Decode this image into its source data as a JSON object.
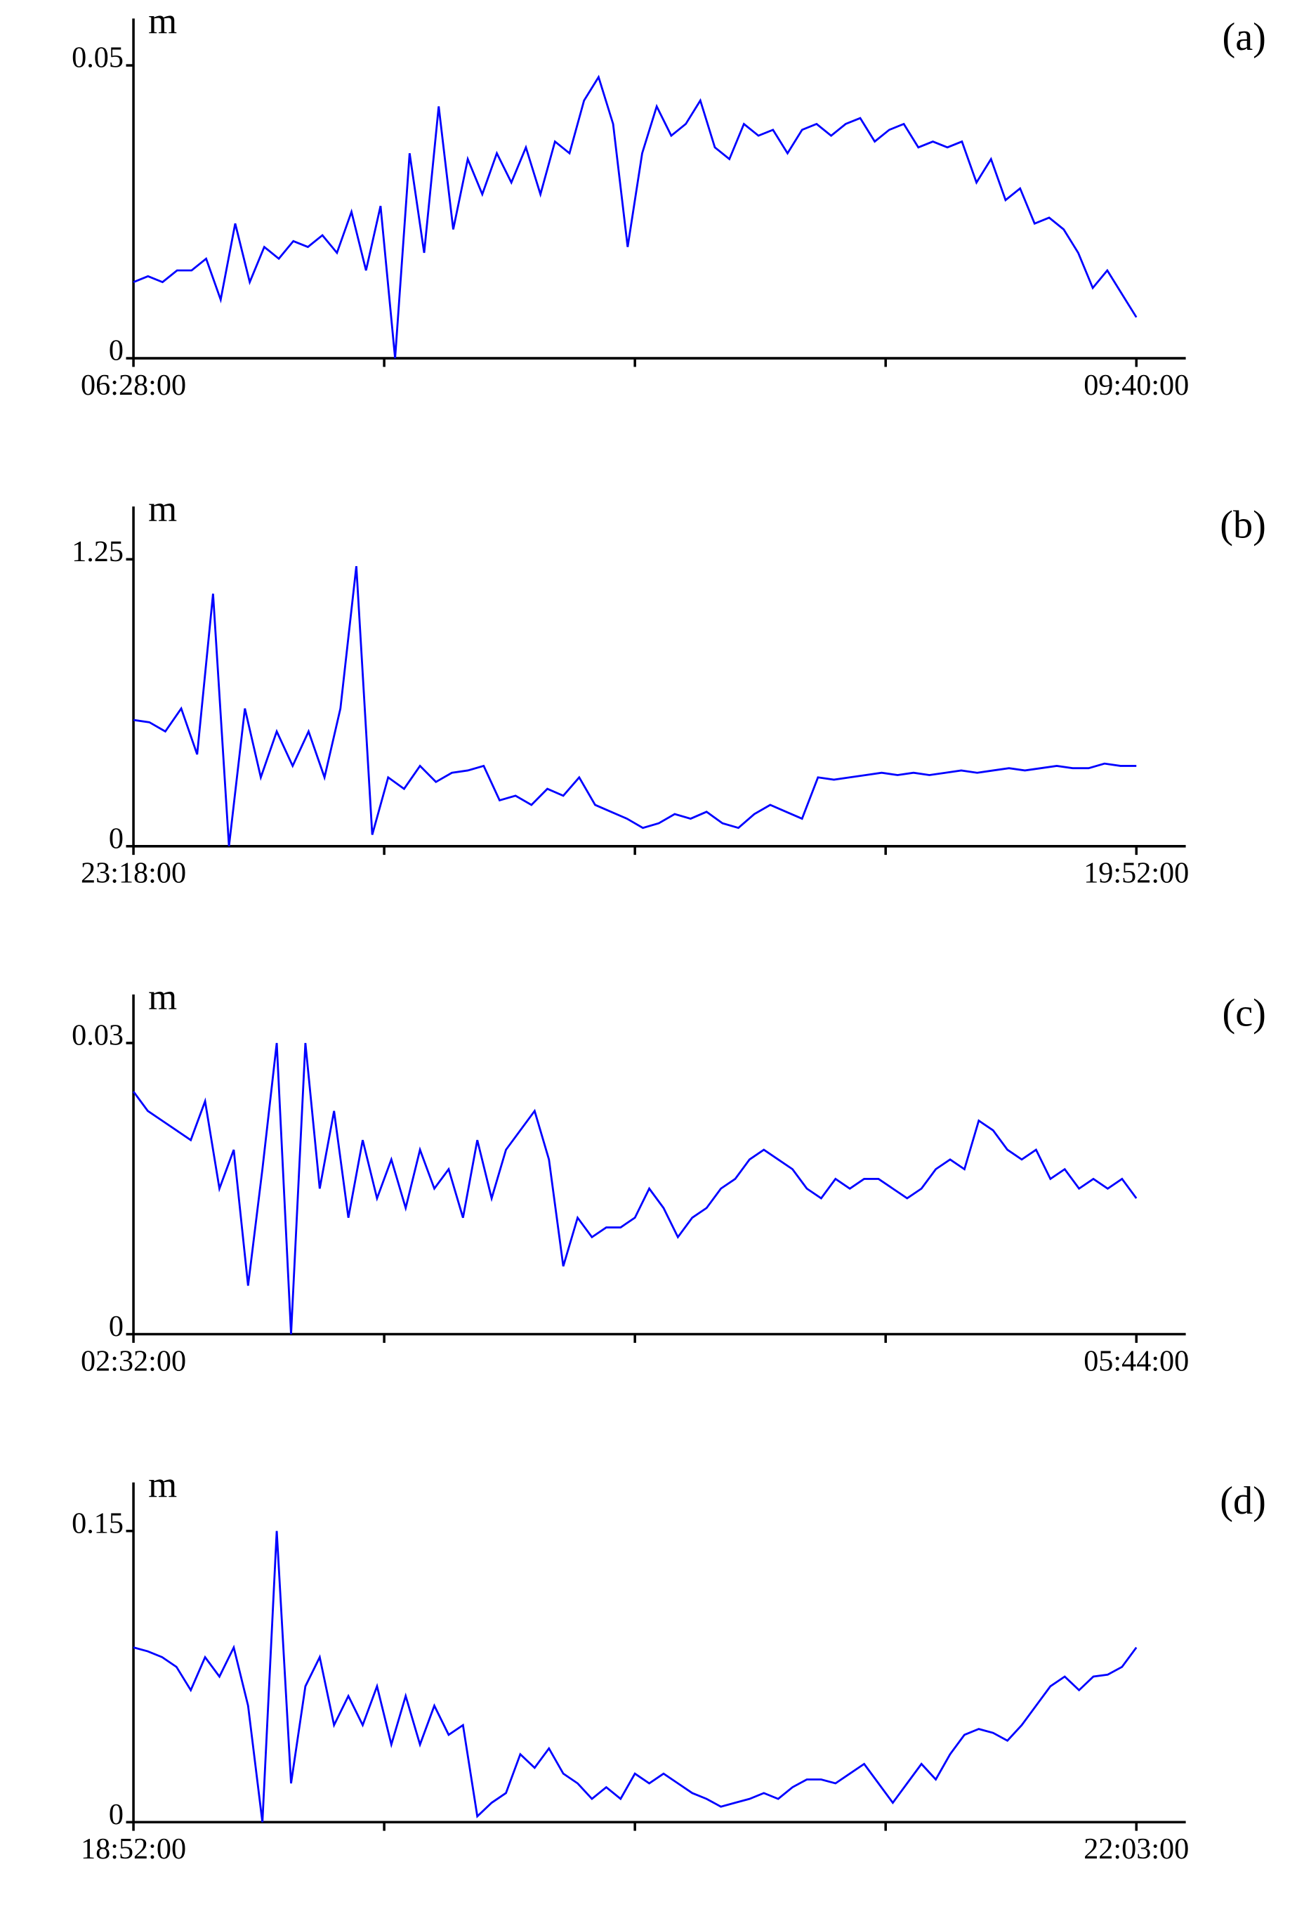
{
  "chart_data": [
    {
      "type": "line",
      "panel_label": "(a)",
      "unit": "m",
      "color": "#0000ff",
      "xticks": [
        "06:28:00",
        null,
        null,
        null,
        "09:40:00"
      ],
      "ylim": [
        0,
        0.058
      ],
      "yticks": [
        0,
        0.05
      ],
      "values": [
        0.013,
        0.014,
        0.013,
        0.015,
        0.015,
        0.017,
        0.01,
        0.023,
        0.013,
        0.019,
        0.017,
        0.02,
        0.019,
        0.021,
        0.018,
        0.025,
        0.015,
        0.026,
        0.0,
        0.035,
        0.018,
        0.043,
        0.022,
        0.034,
        0.028,
        0.035,
        0.03,
        0.036,
        0.028,
        0.037,
        0.035,
        0.044,
        0.048,
        0.04,
        0.019,
        0.035,
        0.043,
        0.038,
        0.04,
        0.044,
        0.036,
        0.034,
        0.04,
        0.038,
        0.039,
        0.035,
        0.039,
        0.04,
        0.038,
        0.04,
        0.041,
        0.037,
        0.039,
        0.04,
        0.036,
        0.037,
        0.036,
        0.037,
        0.03,
        0.034,
        0.027,
        0.029,
        0.023,
        0.024,
        0.022,
        0.018,
        0.012,
        0.015,
        0.011,
        0.007
      ]
    },
    {
      "type": "line",
      "panel_label": "(b)",
      "unit": "m",
      "color": "#0000ff",
      "xticks": [
        "23:18:00",
        null,
        null,
        null,
        "19:52:00"
      ],
      "ylim": [
        0,
        1.48
      ],
      "yticks": [
        0,
        1.25
      ],
      "values": [
        0.55,
        0.54,
        0.5,
        0.6,
        0.4,
        1.1,
        0.0,
        0.6,
        0.3,
        0.5,
        0.35,
        0.5,
        0.3,
        0.6,
        1.22,
        0.05,
        0.3,
        0.25,
        0.35,
        0.28,
        0.32,
        0.33,
        0.35,
        0.2,
        0.22,
        0.18,
        0.25,
        0.22,
        0.3,
        0.18,
        0.15,
        0.12,
        0.08,
        0.1,
        0.14,
        0.12,
        0.15,
        0.1,
        0.08,
        0.14,
        0.18,
        0.15,
        0.12,
        0.3,
        0.29,
        0.3,
        0.31,
        0.32,
        0.31,
        0.32,
        0.31,
        0.32,
        0.33,
        0.32,
        0.33,
        0.34,
        0.33,
        0.34,
        0.35,
        0.34,
        0.34,
        0.36,
        0.35,
        0.35
      ]
    },
    {
      "type": "line",
      "panel_label": "(c)",
      "unit": "m",
      "color": "#0000ff",
      "xticks": [
        "02:32:00",
        null,
        null,
        null,
        "05:44:00"
      ],
      "ylim": [
        0,
        0.035
      ],
      "yticks": [
        0,
        0.03
      ],
      "values": [
        0.025,
        0.023,
        0.022,
        0.021,
        0.02,
        0.024,
        0.015,
        0.019,
        0.005,
        0.017,
        0.03,
        0.0,
        0.03,
        0.015,
        0.023,
        0.012,
        0.02,
        0.014,
        0.018,
        0.013,
        0.019,
        0.015,
        0.017,
        0.012,
        0.02,
        0.014,
        0.019,
        0.021,
        0.023,
        0.018,
        0.007,
        0.012,
        0.01,
        0.011,
        0.011,
        0.012,
        0.015,
        0.013,
        0.01,
        0.012,
        0.013,
        0.015,
        0.016,
        0.018,
        0.019,
        0.018,
        0.017,
        0.015,
        0.014,
        0.016,
        0.015,
        0.016,
        0.016,
        0.015,
        0.014,
        0.015,
        0.017,
        0.018,
        0.017,
        0.022,
        0.021,
        0.019,
        0.018,
        0.019,
        0.016,
        0.017,
        0.015,
        0.016,
        0.015,
        0.016,
        0.014
      ]
    },
    {
      "type": "line",
      "panel_label": "(d)",
      "unit": "m",
      "color": "#0000ff",
      "xticks": [
        "18:52:00",
        null,
        null,
        null,
        "22:03:00"
      ],
      "ylim": [
        0,
        0.175
      ],
      "yticks": [
        0,
        0.15
      ],
      "values": [
        0.09,
        0.088,
        0.085,
        0.08,
        0.068,
        0.085,
        0.075,
        0.09,
        0.06,
        0.0,
        0.15,
        0.02,
        0.07,
        0.085,
        0.05,
        0.065,
        0.05,
        0.07,
        0.04,
        0.065,
        0.04,
        0.06,
        0.045,
        0.05,
        0.003,
        0.01,
        0.015,
        0.035,
        0.028,
        0.038,
        0.025,
        0.02,
        0.012,
        0.018,
        0.012,
        0.025,
        0.02,
        0.025,
        0.02,
        0.015,
        0.012,
        0.008,
        0.01,
        0.012,
        0.015,
        0.012,
        0.018,
        0.022,
        0.022,
        0.02,
        0.025,
        0.03,
        0.02,
        0.01,
        0.02,
        0.03,
        0.022,
        0.035,
        0.045,
        0.048,
        0.046,
        0.042,
        0.05,
        0.06,
        0.07,
        0.075,
        0.068,
        0.075,
        0.076,
        0.08,
        0.09
      ]
    }
  ]
}
